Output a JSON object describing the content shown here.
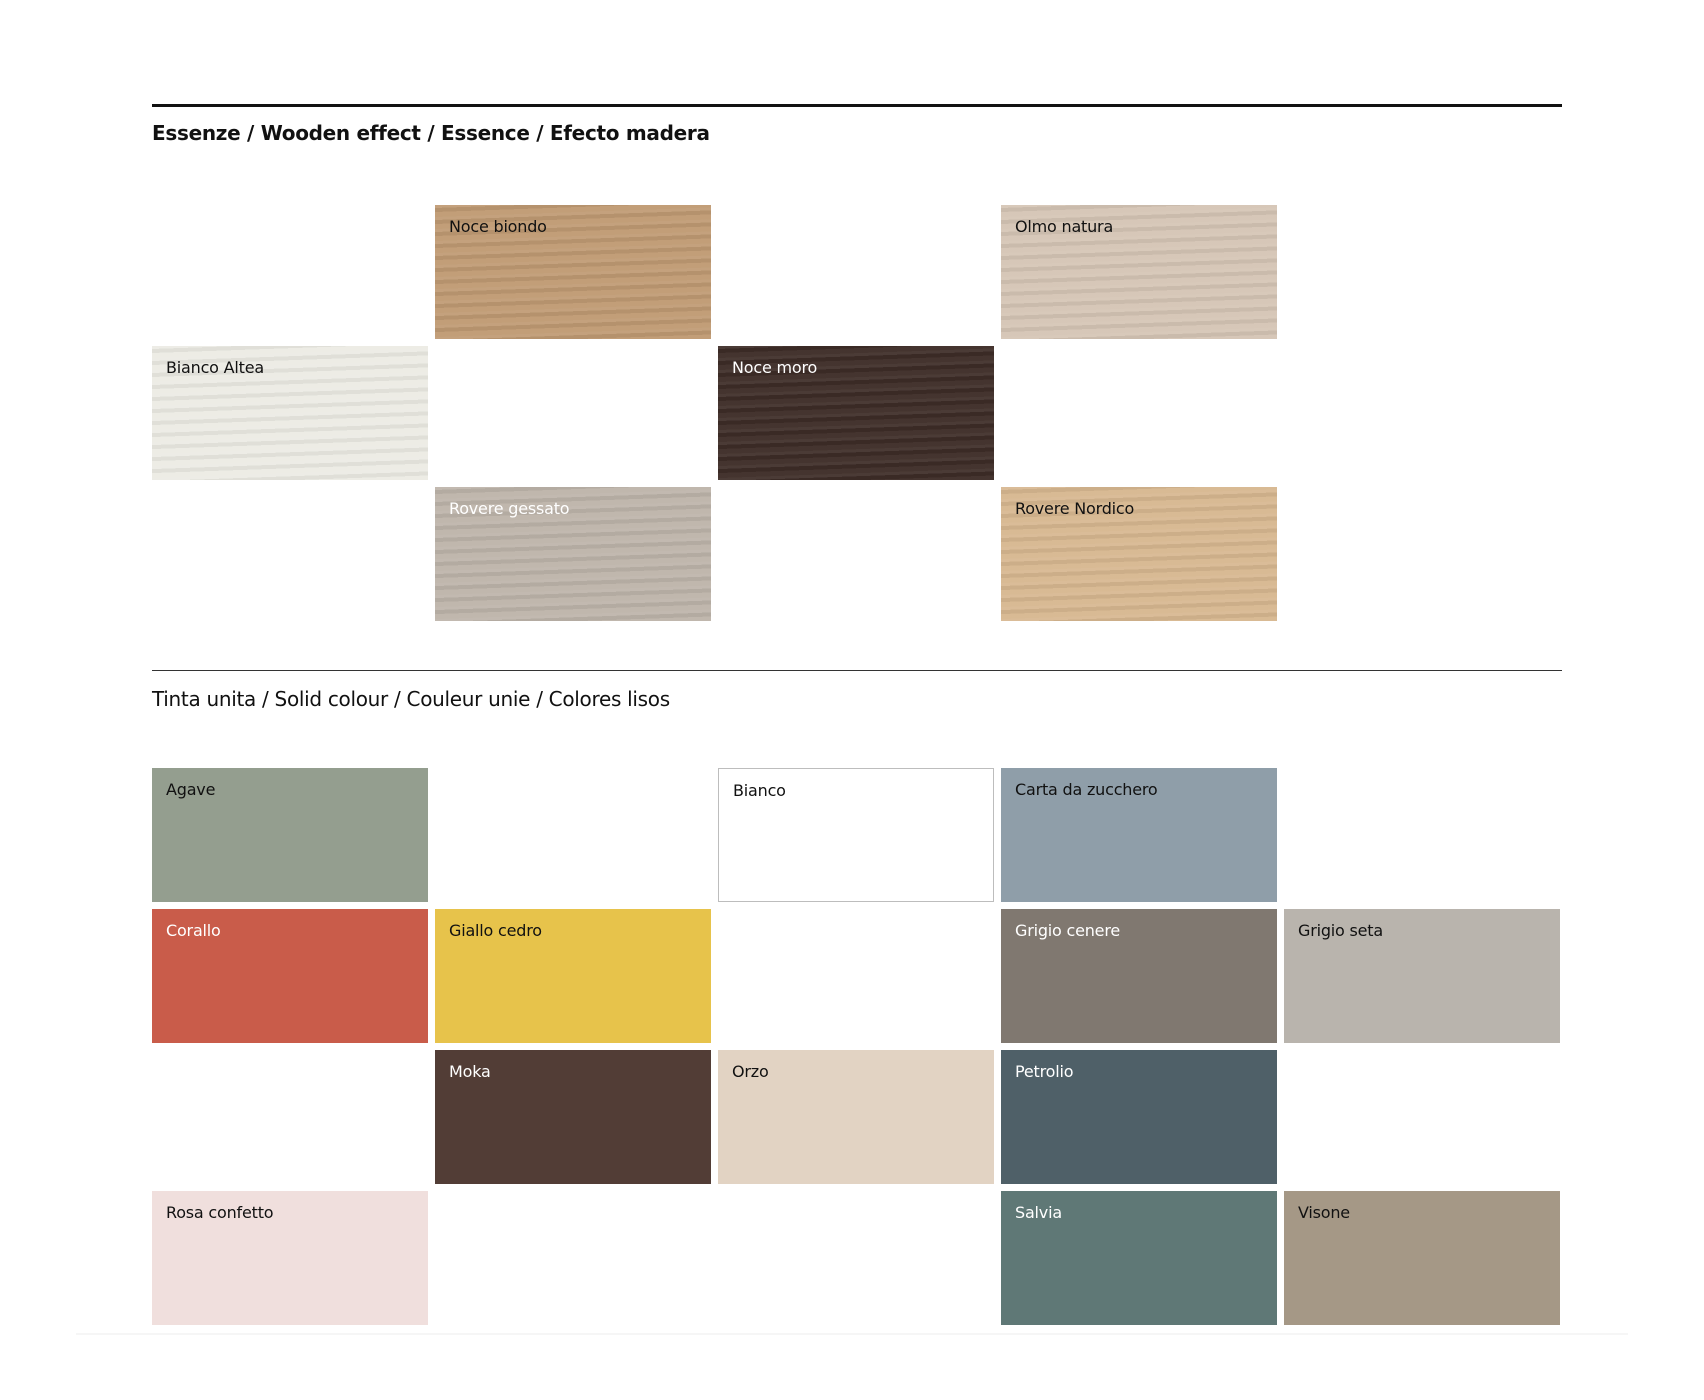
{
  "wooden": {
    "title": "Essenze / Wooden effect / Essence / Efecto madera",
    "swatches": [
      {
        "name": "Noce biondo",
        "color": "#bf9a73",
        "text_color": "#111111",
        "col": 1,
        "row": 0
      },
      {
        "name": "Olmo natura",
        "color": "#d5c5b5",
        "text_color": "#111111",
        "col": 3,
        "row": 0
      },
      {
        "name": "Bianco Altea",
        "color": "#ecebe4",
        "text_color": "#111111",
        "col": 0,
        "row": 1
      },
      {
        "name": "Noce moro",
        "color": "#3d2c27",
        "text_color": "#ffffff",
        "col": 2,
        "row": 1
      },
      {
        "name": "Rovere gessato",
        "color": "#bdb4aa",
        "text_color": "#ffffff",
        "col": 1,
        "row": 2
      },
      {
        "name": "Rovere Nordico",
        "color": "#d7b790",
        "text_color": "#111111",
        "col": 3,
        "row": 2
      }
    ]
  },
  "solid": {
    "title": "Tinta unita / Solid colour / Couleur unie / Colores lisos",
    "swatches": [
      {
        "name": "Agave",
        "color": "#949e8f",
        "text_color": "#111111",
        "col": 0,
        "row": 0
      },
      {
        "name": "Bianco",
        "color": "#ffffff",
        "text_color": "#111111",
        "col": 2,
        "row": 0,
        "border": "#bdbdbd"
      },
      {
        "name": "Carta da zucchero",
        "color": "#8f9ea9",
        "text_color": "#111111",
        "col": 3,
        "row": 0
      },
      {
        "name": "Corallo",
        "color": "#c95c4a",
        "text_color": "#ffffff",
        "col": 0,
        "row": 1
      },
      {
        "name": "Giallo cedro",
        "color": "#e7c34b",
        "text_color": "#111111",
        "col": 1,
        "row": 1
      },
      {
        "name": "Grigio cenere",
        "color": "#807870",
        "text_color": "#ffffff",
        "col": 3,
        "row": 1
      },
      {
        "name": "Grigio seta",
        "color": "#b9b4ad",
        "text_color": "#111111",
        "col": 4,
        "row": 1
      },
      {
        "name": "Moka",
        "color": "#523d36",
        "text_color": "#ffffff",
        "col": 1,
        "row": 2
      },
      {
        "name": "Orzo",
        "color": "#e2d3c3",
        "text_color": "#111111",
        "col": 2,
        "row": 2
      },
      {
        "name": "Petrolio",
        "color": "#4f6068",
        "text_color": "#ffffff",
        "col": 3,
        "row": 2
      },
      {
        "name": "Rosa confetto",
        "color": "#f0dfdd",
        "text_color": "#111111",
        "col": 0,
        "row": 3
      },
      {
        "name": "Salvia",
        "color": "#5f7876",
        "text_color": "#ffffff",
        "col": 3,
        "row": 3
      },
      {
        "name": "Visone",
        "color": "#a59886",
        "text_color": "#111111",
        "col": 4,
        "row": 3
      }
    ]
  }
}
